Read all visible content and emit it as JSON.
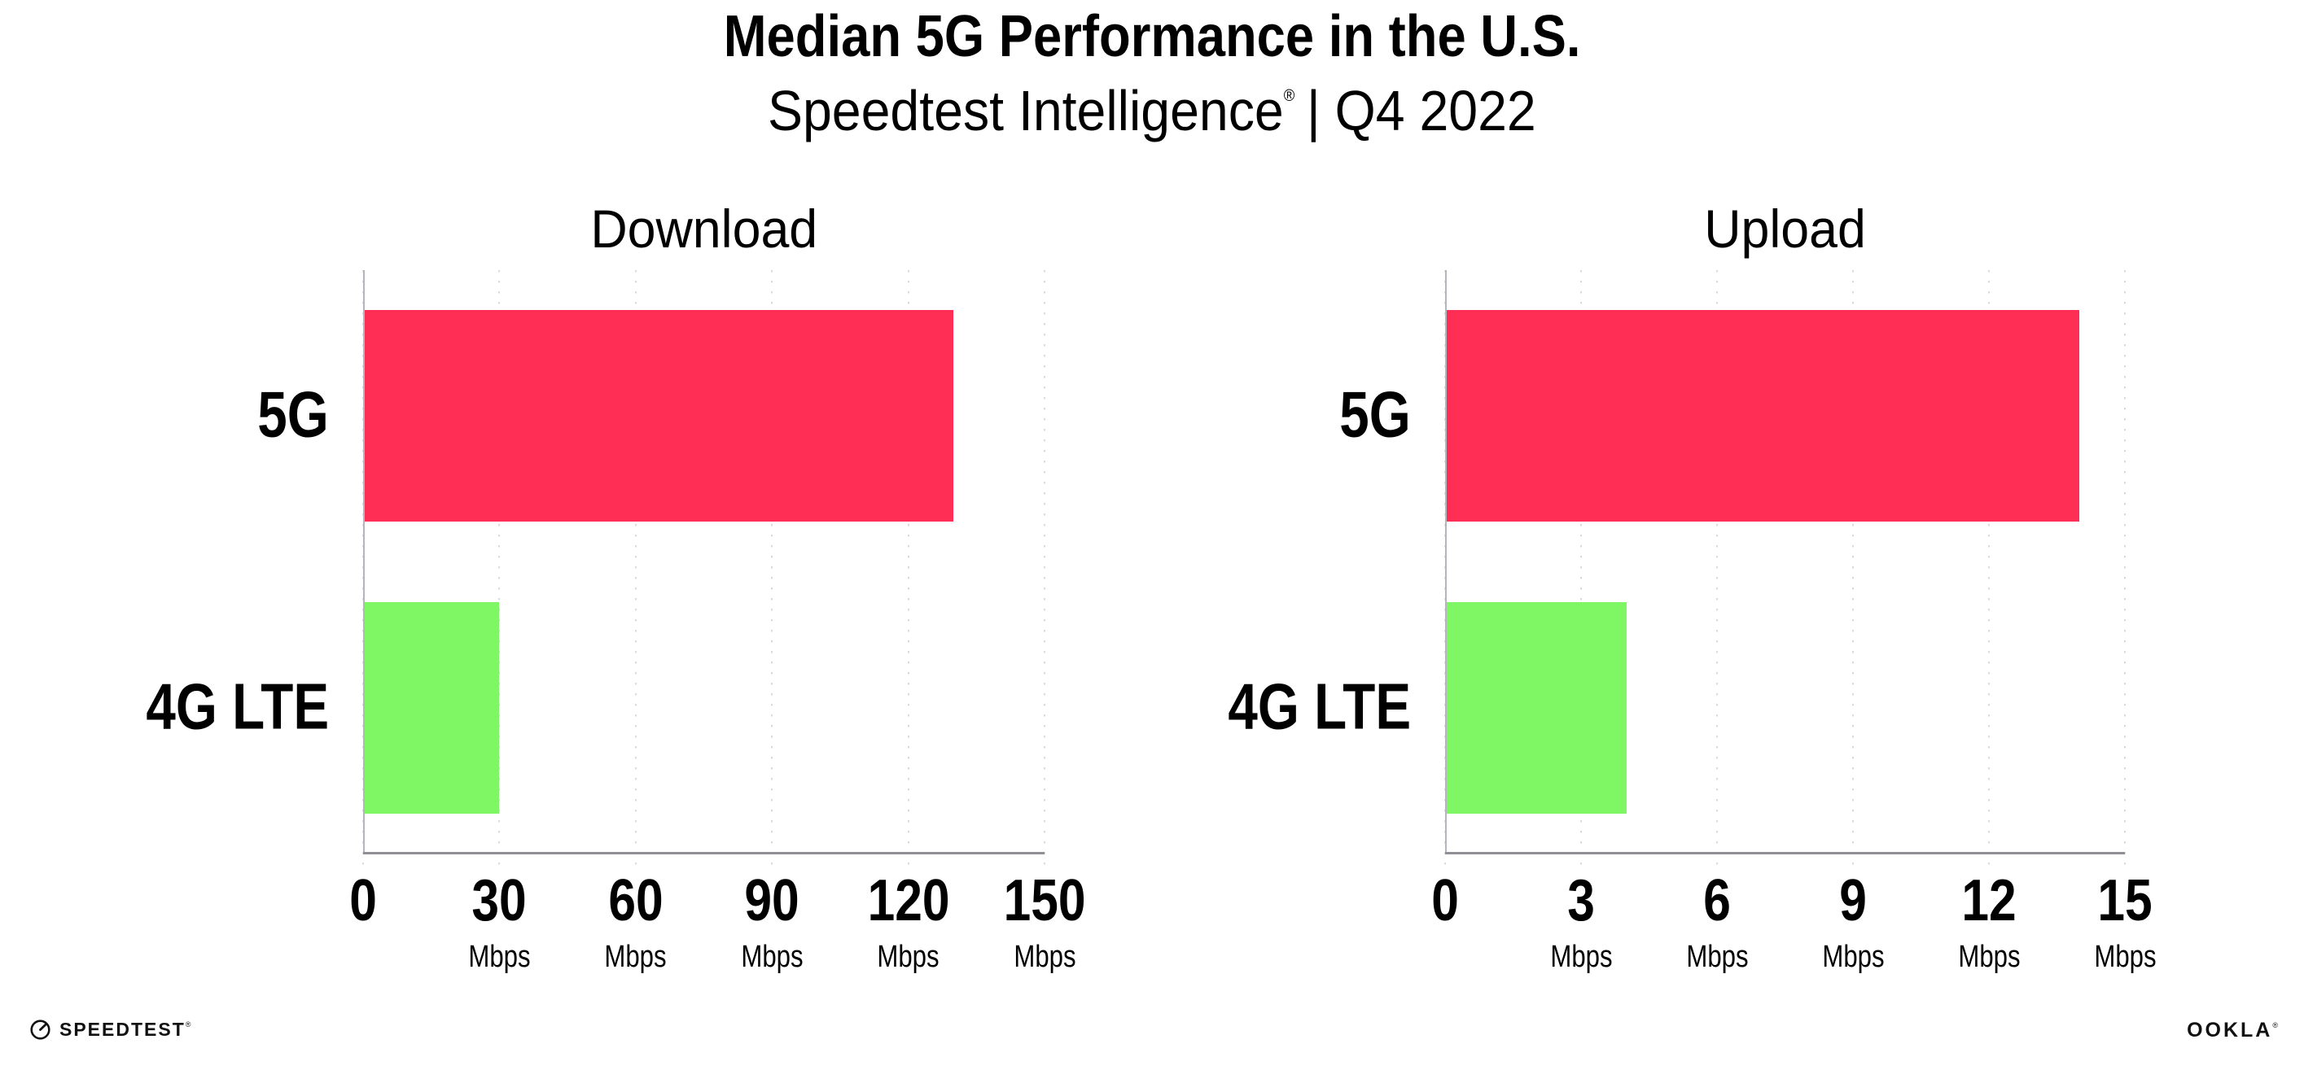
{
  "header": {
    "title": "Median 5G Performance in the U.S.",
    "subtitle_brand": "Speedtest Intelligence",
    "subtitle_reg": "®",
    "subtitle_rest": "| Q4 2022"
  },
  "colors": {
    "bar_5g": "#ff2e55",
    "bar_4g_lte": "#7ff765",
    "gridline": "#d8dae3",
    "axis_line": "#8f8f96",
    "y_axis_line": "#b5b5bd",
    "text": "#000000",
    "background": "#ffffff"
  },
  "chart_data": [
    {
      "type": "bar",
      "orientation": "horizontal",
      "title": "Download",
      "categories": [
        "5G",
        "4G LTE"
      ],
      "values": [
        130,
        30
      ],
      "unit": "Mbps",
      "xlim": [
        0,
        150
      ],
      "xticks": [
        0,
        30,
        60,
        90,
        120,
        150
      ],
      "tick_unit_label": "Mbps",
      "grid": "dotted-vertical",
      "legend": "none",
      "bar_colors": [
        "#ff2e55",
        "#7ff765"
      ]
    },
    {
      "type": "bar",
      "orientation": "horizontal",
      "title": "Upload",
      "categories": [
        "5G",
        "4G LTE"
      ],
      "values": [
        14,
        4
      ],
      "unit": "Mbps",
      "xlim": [
        0,
        15
      ],
      "xticks": [
        0,
        3,
        6,
        9,
        12,
        15
      ],
      "tick_unit_label": "Mbps",
      "grid": "dotted-vertical",
      "legend": "none",
      "bar_colors": [
        "#ff2e55",
        "#7ff765"
      ]
    }
  ],
  "footer": {
    "speedtest_icon": "gauge-icon",
    "speedtest_text": "SPEEDTEST",
    "speedtest_reg": "®",
    "ookla_text": "OOKLA",
    "ookla_reg": "®"
  }
}
